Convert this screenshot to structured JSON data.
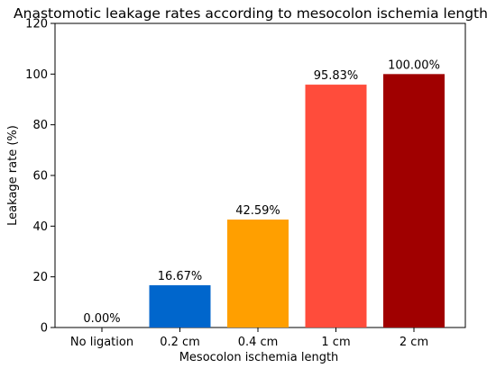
{
  "chart_data": {
    "type": "bar",
    "title": "Anastomotic leakage rates according to mesocolon ischemia length",
    "xlabel": "Mesocolon ischemia length",
    "ylabel": "Leakage rate (%)",
    "categories": [
      "No ligation",
      "0.2 cm",
      "0.4 cm",
      "1 cm",
      "2 cm"
    ],
    "values": [
      0,
      16.67,
      42.59,
      95.83,
      100
    ],
    "data_labels": [
      "0.00%",
      "16.67%",
      "42.59%",
      "95.83%",
      "100.00%"
    ],
    "colors": [
      "#1f77b4",
      "#0066cc",
      "#ff9f00",
      "#ff4c3b",
      "#a00000"
    ],
    "ylim": [
      0,
      120
    ],
    "yticks": [
      0,
      20,
      40,
      60,
      80,
      100,
      120
    ],
    "grid": false,
    "legend": "none"
  }
}
